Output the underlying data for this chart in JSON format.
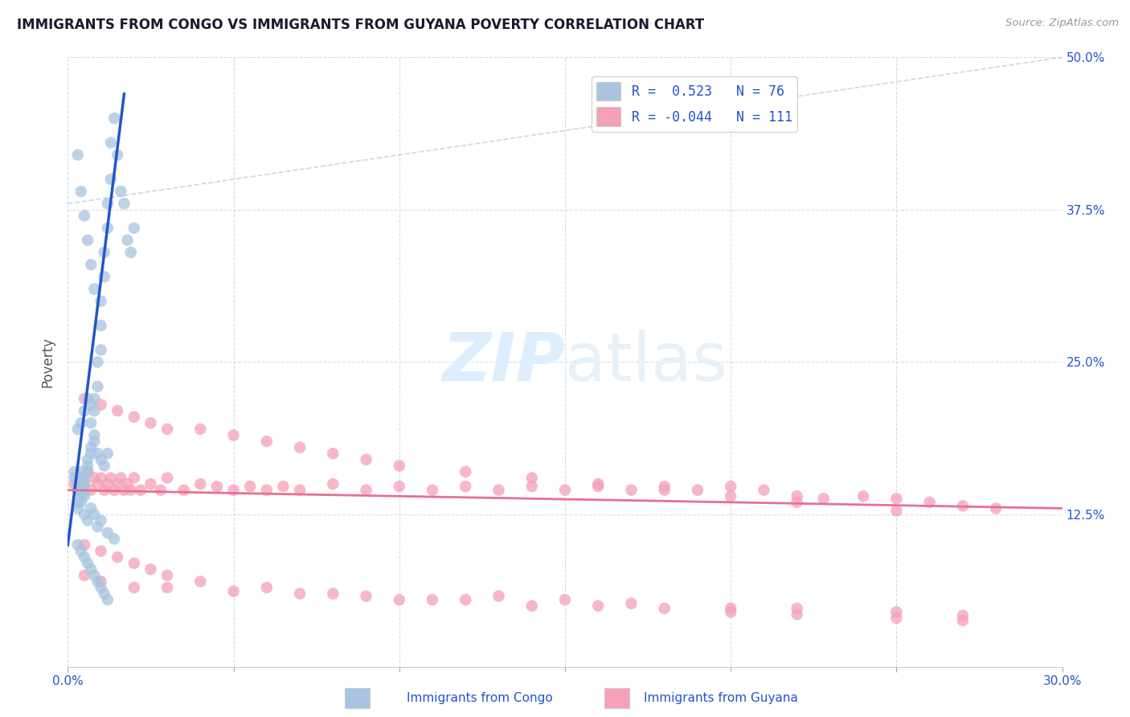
{
  "title": "IMMIGRANTS FROM CONGO VS IMMIGRANTS FROM GUYANA POVERTY CORRELATION CHART",
  "source": "Source: ZipAtlas.com",
  "ylabel": "Poverty",
  "xlim": [
    0.0,
    0.3
  ],
  "ylim": [
    0.0,
    0.5
  ],
  "yticks_right": [
    0.125,
    0.25,
    0.375,
    0.5
  ],
  "ytick_right_labels": [
    "12.5%",
    "25.0%",
    "37.5%",
    "50.0%"
  ],
  "congo_color": "#a8c4e0",
  "guyana_color": "#f4a0b8",
  "congo_line_color": "#2255cc",
  "guyana_line_color": "#e87090",
  "ref_line_color": "#b8c8d8",
  "grid_color": "#d0d8e8",
  "background_color": "#ffffff",
  "watermark_color": "#ddeeff",
  "title_color": "#1a1a2e",
  "axis_label_color": "#555555",
  "legend_text_color": "#2255cc",
  "congo_scatter_x": [
    0.002,
    0.002,
    0.003,
    0.003,
    0.003,
    0.004,
    0.004,
    0.004,
    0.004,
    0.005,
    0.005,
    0.005,
    0.005,
    0.006,
    0.006,
    0.006,
    0.007,
    0.007,
    0.007,
    0.008,
    0.008,
    0.008,
    0.009,
    0.009,
    0.01,
    0.01,
    0.01,
    0.011,
    0.011,
    0.012,
    0.012,
    0.013,
    0.013,
    0.014,
    0.015,
    0.016,
    0.017,
    0.018,
    0.019,
    0.02,
    0.003,
    0.004,
    0.005,
    0.006,
    0.007,
    0.008,
    0.009,
    0.01,
    0.011,
    0.012,
    0.003,
    0.004,
    0.005,
    0.006,
    0.007,
    0.008,
    0.009,
    0.01,
    0.012,
    0.014,
    0.003,
    0.004,
    0.005,
    0.006,
    0.007,
    0.008,
    0.009,
    0.01,
    0.011,
    0.012,
    0.003,
    0.004,
    0.005,
    0.006,
    0.007,
    0.008
  ],
  "congo_scatter_y": [
    0.155,
    0.16,
    0.145,
    0.135,
    0.15,
    0.14,
    0.15,
    0.155,
    0.16,
    0.145,
    0.14,
    0.15,
    0.155,
    0.16,
    0.165,
    0.17,
    0.175,
    0.18,
    0.2,
    0.185,
    0.21,
    0.22,
    0.23,
    0.25,
    0.26,
    0.28,
    0.3,
    0.32,
    0.34,
    0.36,
    0.38,
    0.4,
    0.43,
    0.45,
    0.42,
    0.39,
    0.38,
    0.35,
    0.34,
    0.36,
    0.195,
    0.2,
    0.21,
    0.22,
    0.215,
    0.19,
    0.175,
    0.17,
    0.165,
    0.175,
    0.13,
    0.135,
    0.125,
    0.12,
    0.13,
    0.125,
    0.115,
    0.12,
    0.11,
    0.105,
    0.1,
    0.095,
    0.09,
    0.085,
    0.08,
    0.075,
    0.07,
    0.065,
    0.06,
    0.055,
    0.42,
    0.39,
    0.37,
    0.35,
    0.33,
    0.31
  ],
  "guyana_scatter_x": [
    0.002,
    0.003,
    0.004,
    0.005,
    0.006,
    0.007,
    0.008,
    0.009,
    0.01,
    0.011,
    0.012,
    0.013,
    0.014,
    0.015,
    0.016,
    0.017,
    0.018,
    0.019,
    0.02,
    0.022,
    0.025,
    0.028,
    0.03,
    0.035,
    0.04,
    0.045,
    0.05,
    0.055,
    0.06,
    0.065,
    0.07,
    0.08,
    0.09,
    0.1,
    0.11,
    0.12,
    0.13,
    0.14,
    0.15,
    0.16,
    0.17,
    0.18,
    0.19,
    0.2,
    0.21,
    0.22,
    0.228,
    0.24,
    0.25,
    0.26,
    0.27,
    0.28,
    0.005,
    0.01,
    0.015,
    0.02,
    0.025,
    0.03,
    0.04,
    0.05,
    0.06,
    0.07,
    0.08,
    0.09,
    0.1,
    0.12,
    0.14,
    0.16,
    0.18,
    0.2,
    0.22,
    0.25,
    0.005,
    0.01,
    0.015,
    0.02,
    0.025,
    0.03,
    0.04,
    0.06,
    0.08,
    0.1,
    0.12,
    0.14,
    0.16,
    0.18,
    0.2,
    0.22,
    0.25,
    0.27,
    0.005,
    0.01,
    0.02,
    0.03,
    0.05,
    0.07,
    0.09,
    0.11,
    0.13,
    0.15,
    0.17,
    0.2,
    0.22,
    0.25,
    0.27
  ],
  "guyana_scatter_y": [
    0.15,
    0.145,
    0.155,
    0.15,
    0.16,
    0.145,
    0.155,
    0.15,
    0.155,
    0.145,
    0.15,
    0.155,
    0.145,
    0.15,
    0.155,
    0.145,
    0.15,
    0.145,
    0.155,
    0.145,
    0.15,
    0.145,
    0.155,
    0.145,
    0.15,
    0.148,
    0.145,
    0.148,
    0.145,
    0.148,
    0.145,
    0.15,
    0.145,
    0.148,
    0.145,
    0.148,
    0.145,
    0.148,
    0.145,
    0.148,
    0.145,
    0.148,
    0.145,
    0.148,
    0.145,
    0.14,
    0.138,
    0.14,
    0.138,
    0.135,
    0.132,
    0.13,
    0.22,
    0.215,
    0.21,
    0.205,
    0.2,
    0.195,
    0.195,
    0.19,
    0.185,
    0.18,
    0.175,
    0.17,
    0.165,
    0.16,
    0.155,
    0.15,
    0.145,
    0.14,
    0.135,
    0.128,
    0.1,
    0.095,
    0.09,
    0.085,
    0.08,
    0.075,
    0.07,
    0.065,
    0.06,
    0.055,
    0.055,
    0.05,
    0.05,
    0.048,
    0.045,
    0.043,
    0.04,
    0.038,
    0.075,
    0.07,
    0.065,
    0.065,
    0.062,
    0.06,
    0.058,
    0.055,
    0.058,
    0.055,
    0.052,
    0.048,
    0.048,
    0.045,
    0.042
  ]
}
